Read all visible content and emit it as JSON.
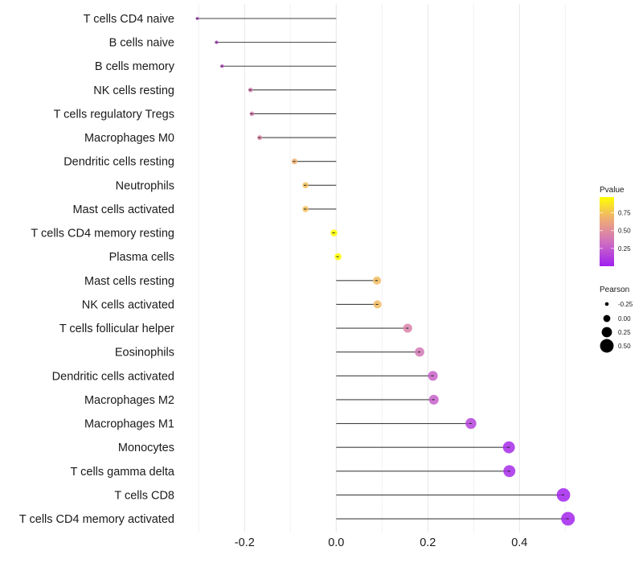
{
  "chart_data": {
    "type": "scatter",
    "subtype": "lollipop",
    "title": "",
    "xlabel": "",
    "ylabel": "",
    "xlim": [
      -0.32,
      0.52
    ],
    "xticks": [
      -0.2,
      0.0,
      0.2,
      0.4
    ],
    "xtick_labels": [
      "-0.2",
      "0.0",
      "0.2",
      "0.4"
    ],
    "grid": true,
    "categories": [
      "T cells CD4 naive",
      "B cells naive",
      "B cells memory",
      "NK cells resting",
      "T cells regulatory  Tregs ",
      "Macrophages M0",
      "Dendritic cells resting",
      "Neutrophils",
      "Mast cells activated",
      "T cells CD4 memory resting",
      "Plasma cells",
      "Mast cells resting",
      "NK cells activated",
      "T cells follicular helper",
      "Eosinophils",
      "Dendritic cells activated",
      "Macrophages M2",
      "Macrophages M1",
      "Monocytes",
      "T cells gamma delta",
      "T cells CD8",
      "T cells CD4 memory activated"
    ],
    "series": [
      {
        "name": "Pearson",
        "values": [
          -0.303,
          -0.261,
          -0.249,
          -0.187,
          -0.184,
          -0.167,
          -0.091,
          -0.067,
          -0.067,
          -0.005,
          0.004,
          0.089,
          0.09,
          0.156,
          0.182,
          0.211,
          0.213,
          0.294,
          0.377,
          0.378,
          0.496,
          0.506
        ]
      },
      {
        "name": "Pvalue",
        "values": [
          0.15,
          0.22,
          0.24,
          0.4,
          0.41,
          0.45,
          0.68,
          0.74,
          0.74,
          0.98,
          0.98,
          0.72,
          0.72,
          0.44,
          0.38,
          0.28,
          0.27,
          0.15,
          0.05,
          0.05,
          0.02,
          0.02
        ]
      }
    ],
    "legend": {
      "placement": "right",
      "color": {
        "title": "Pvalue",
        "ticks": [
          0.25,
          0.5,
          0.75
        ],
        "tick_labels": [
          "0.25",
          "0.50",
          "0.75"
        ],
        "range": [
          0.0,
          0.97
        ],
        "colors": [
          "#a020f0",
          "#d070c0",
          "#f0b070",
          "#ffff00"
        ]
      },
      "size": {
        "title": "Pearson",
        "values": [
          -0.25,
          0.0,
          0.25,
          0.5
        ],
        "labels": [
          "-0.25",
          "0.00",
          "0.25",
          "0.50"
        ]
      }
    }
  }
}
